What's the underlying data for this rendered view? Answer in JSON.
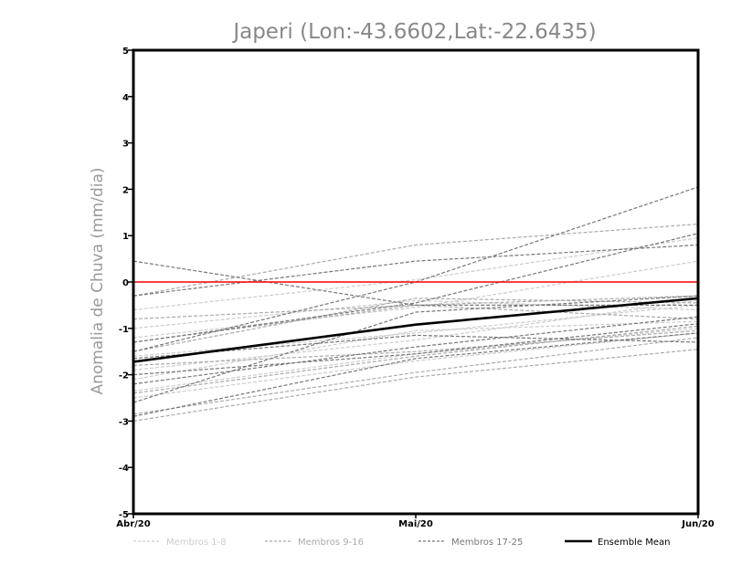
{
  "chart_data": {
    "type": "line",
    "title": "Japeri (Lon:-43.6602,Lat:-22.6435)",
    "ylabel": "Anomalia de Chuva (mm/dia)",
    "xlabel": "",
    "x": [
      "Abr/20",
      "Mai/20",
      "Jun/20"
    ],
    "ylim": [
      -5,
      5
    ],
    "yticks": [
      "5",
      "4",
      "3",
      "2",
      "1",
      "0",
      "-1",
      "-2",
      "-3",
      "-4",
      "-5"
    ],
    "ytick_values": [
      5,
      4,
      3,
      2,
      1,
      0,
      -1,
      -2,
      -3,
      -4,
      -5
    ],
    "zero_line": {
      "value": 0,
      "color": "#ff0000"
    },
    "groups": [
      {
        "name": "Membros 1-8",
        "color": "#cccccc",
        "members": [
          [
            -0.6,
            0.05,
            0.95
          ],
          [
            -1.2,
            -0.55,
            0.45
          ],
          [
            -1.9,
            -1.25,
            -0.4
          ],
          [
            -2.1,
            -1.05,
            -0.85
          ],
          [
            -2.35,
            -1.55,
            -1.0
          ],
          [
            -1.0,
            -0.4,
            -0.6
          ],
          [
            -2.5,
            -1.7,
            -1.1
          ],
          [
            -1.6,
            -1.1,
            -0.5
          ]
        ]
      },
      {
        "name": "Membros 9-16",
        "color": "#aaaaaa",
        "members": [
          [
            -0.3,
            0.8,
            1.25
          ],
          [
            -1.3,
            -0.5,
            -0.8
          ],
          [
            -1.5,
            -0.35,
            -0.45
          ],
          [
            -2.4,
            -1.6,
            -0.95
          ],
          [
            -2.85,
            -1.95,
            -1.2
          ],
          [
            -1.8,
            -1.5,
            -1.05
          ],
          [
            -3.0,
            -2.05,
            -1.45
          ],
          [
            -0.8,
            -0.5,
            -0.3
          ]
        ]
      },
      {
        "name": "Membros 17-25",
        "color": "#777777",
        "members": [
          [
            -1.5,
            0.0,
            2.05
          ],
          [
            -0.3,
            0.45,
            0.8
          ],
          [
            0.45,
            -0.5,
            -0.5
          ],
          [
            -1.3,
            -0.45,
            1.05
          ],
          [
            -2.6,
            -0.65,
            -0.3
          ],
          [
            -2.2,
            -1.4,
            -0.75
          ],
          [
            -2.9,
            -1.65,
            -1.1
          ],
          [
            -2.0,
            -1.55,
            -0.9
          ],
          [
            -1.65,
            -1.15,
            -1.3
          ]
        ]
      }
    ],
    "mean": {
      "name": "Ensemble Mean",
      "color": "#000000",
      "values": [
        -1.72,
        -0.92,
        -0.35
      ]
    },
    "legend": {
      "position": "bottom",
      "items": [
        {
          "label": "Membros 1-8",
          "color": "#cccccc",
          "style": "dashed"
        },
        {
          "label": "Membros 9-16",
          "color": "#aaaaaa",
          "style": "dashed"
        },
        {
          "label": "Membros 17-25",
          "color": "#777777",
          "style": "dashed"
        },
        {
          "label": "Ensemble Mean",
          "color": "#000000",
          "style": "solid"
        }
      ]
    }
  }
}
